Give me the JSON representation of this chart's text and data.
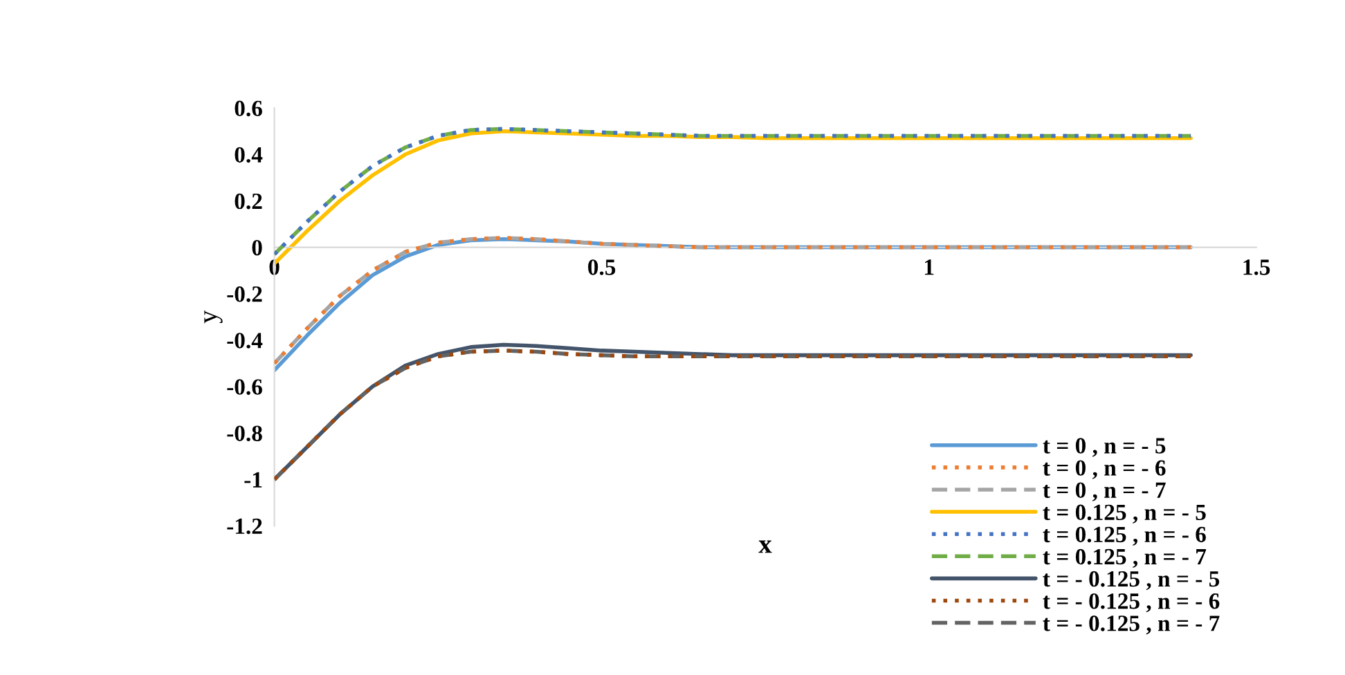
{
  "chart_data": {
    "type": "line",
    "xlabel": "x",
    "ylabel": "y",
    "xlim": [
      0,
      1.5
    ],
    "xticks": [
      0,
      0.5,
      1,
      1.5
    ],
    "ylim": [
      -1.2,
      0.6
    ],
    "yticks": [
      -1.2,
      -1,
      -0.8,
      -0.6,
      -0.4,
      -0.2,
      0,
      0.2,
      0.4,
      0.6
    ],
    "grid": false,
    "legend": "bottom right",
    "x": [
      0,
      0.05,
      0.1,
      0.15,
      0.2,
      0.25,
      0.3,
      0.35,
      0.4,
      0.45,
      0.5,
      0.55,
      0.6,
      0.65,
      0.7,
      0.75,
      0.8,
      0.85,
      0.9,
      0.95,
      1,
      1.05,
      1.1,
      1.15,
      1.2,
      1.25,
      1.3,
      1.35,
      1.4
    ],
    "series": [
      {
        "name": "t = 0 , n = - 5",
        "color": "#5b9bd5",
        "line_style": "solid",
        "values": [
          -0.53,
          -0.38,
          -0.24,
          -0.12,
          -0.04,
          0.01,
          0.03,
          0.035,
          0.03,
          0.025,
          0.015,
          0.01,
          0.005,
          0,
          0,
          0,
          0,
          0,
          0,
          0,
          0,
          0,
          0,
          0,
          0,
          0,
          0,
          0,
          0
        ]
      },
      {
        "name": "t = 0 , n = - 6",
        "color": "#ed7d31",
        "line_style": "dotted",
        "values": [
          -0.5,
          -0.35,
          -0.21,
          -0.1,
          -0.02,
          0.02,
          0.035,
          0.04,
          0.035,
          0.025,
          0.015,
          0.01,
          0.005,
          0,
          0,
          0,
          0,
          0,
          0,
          0,
          0,
          0,
          0,
          0,
          0,
          0,
          0,
          0,
          0
        ]
      },
      {
        "name": "t = 0 , n = - 7",
        "color": "#a5a5a5",
        "line_style": "dashed",
        "values": [
          -0.5,
          -0.35,
          -0.21,
          -0.1,
          -0.02,
          0.02,
          0.035,
          0.04,
          0.035,
          0.025,
          0.015,
          0.01,
          0.005,
          0,
          0,
          0,
          0,
          0,
          0,
          0,
          0,
          0,
          0,
          0,
          0,
          0,
          0,
          0,
          0
        ]
      },
      {
        "name": "t = 0.125 , n = - 5",
        "color": "#ffc000",
        "line_style": "solid",
        "values": [
          -0.07,
          0.07,
          0.2,
          0.31,
          0.4,
          0.46,
          0.49,
          0.5,
          0.495,
          0.49,
          0.485,
          0.48,
          0.48,
          0.475,
          0.475,
          0.47,
          0.47,
          0.47,
          0.47,
          0.47,
          0.47,
          0.47,
          0.47,
          0.47,
          0.47,
          0.47,
          0.47,
          0.47,
          0.47
        ]
      },
      {
        "name": "t = 0.125 , n = - 6",
        "color": "#4472c4",
        "line_style": "dotted",
        "values": [
          -0.03,
          0.11,
          0.24,
          0.35,
          0.43,
          0.48,
          0.505,
          0.51,
          0.505,
          0.5,
          0.495,
          0.49,
          0.485,
          0.48,
          0.48,
          0.48,
          0.48,
          0.48,
          0.48,
          0.48,
          0.48,
          0.48,
          0.48,
          0.48,
          0.48,
          0.48,
          0.48,
          0.48,
          0.48
        ]
      },
      {
        "name": "t = 0.125 , n = - 7",
        "color": "#70ad47",
        "line_style": "dashed",
        "values": [
          -0.03,
          0.11,
          0.24,
          0.35,
          0.43,
          0.48,
          0.505,
          0.51,
          0.505,
          0.5,
          0.495,
          0.49,
          0.485,
          0.48,
          0.48,
          0.48,
          0.48,
          0.48,
          0.48,
          0.48,
          0.48,
          0.48,
          0.48,
          0.48,
          0.48,
          0.48,
          0.48,
          0.48,
          0.48
        ]
      },
      {
        "name": "t = - 0.125 , n = - 5",
        "color": "#44546a",
        "line_style": "solid",
        "values": [
          -1,
          -0.86,
          -0.72,
          -0.6,
          -0.51,
          -0.46,
          -0.43,
          -0.42,
          -0.425,
          -0.435,
          -0.445,
          -0.45,
          -0.455,
          -0.46,
          -0.465,
          -0.465,
          -0.465,
          -0.465,
          -0.465,
          -0.465,
          -0.465,
          -0.465,
          -0.465,
          -0.465,
          -0.465,
          -0.465,
          -0.465,
          -0.465,
          -0.465
        ]
      },
      {
        "name": "t = - 0.125 , n = - 6",
        "color": "#9e480e",
        "line_style": "dotted",
        "values": [
          -1,
          -0.86,
          -0.72,
          -0.6,
          -0.52,
          -0.47,
          -0.45,
          -0.445,
          -0.45,
          -0.46,
          -0.465,
          -0.47,
          -0.47,
          -0.47,
          -0.47,
          -0.47,
          -0.47,
          -0.47,
          -0.47,
          -0.47,
          -0.47,
          -0.47,
          -0.47,
          -0.47,
          -0.47,
          -0.47,
          -0.47,
          -0.47,
          -0.47
        ]
      },
      {
        "name": "t = - 0.125 , n = - 7",
        "color": "#636363",
        "line_style": "dashed",
        "values": [
          -1,
          -0.86,
          -0.72,
          -0.6,
          -0.52,
          -0.47,
          -0.45,
          -0.445,
          -0.45,
          -0.46,
          -0.465,
          -0.47,
          -0.47,
          -0.47,
          -0.47,
          -0.47,
          -0.47,
          -0.47,
          -0.47,
          -0.47,
          -0.47,
          -0.47,
          -0.47,
          -0.47,
          -0.47,
          -0.47,
          -0.47,
          -0.47,
          -0.47
        ]
      }
    ]
  }
}
